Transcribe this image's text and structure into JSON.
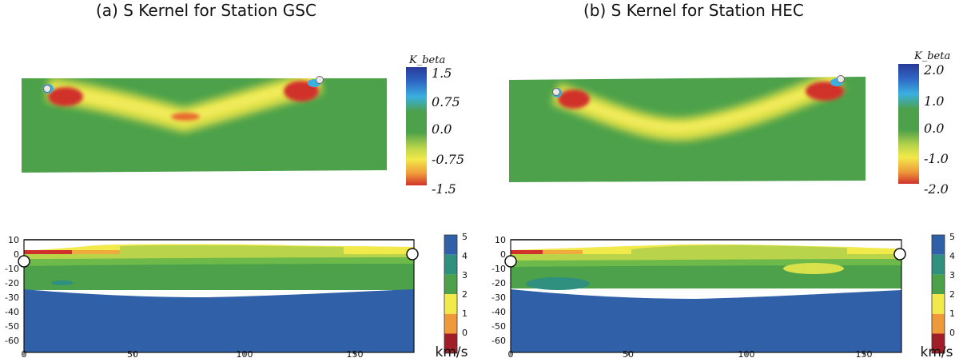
{
  "panels": [
    {
      "title": "(a) S Kernel for Station GSC",
      "kernel_colorbar": {
        "label": "K_beta",
        "ticks": [
          "1.5",
          "0.75",
          "0.0",
          "-0.75",
          "-1.5"
        ]
      }
    },
    {
      "title": "(b) S Kernel for Station HEC",
      "kernel_colorbar": {
        "label": "K_beta",
        "ticks": [
          "2.0",
          "1.0",
          "0.0",
          "-1.0",
          "-2.0"
        ]
      }
    }
  ],
  "velocity_plots": {
    "y_ticks": [
      "10",
      "0",
      "-10",
      "-20",
      "-30",
      "-40",
      "-50",
      "-60"
    ],
    "x_ticks": [
      [
        "0",
        "50",
        "100",
        "150"
      ],
      [
        "0",
        "50",
        "100",
        "150"
      ]
    ],
    "colorbar_ticks": [
      "5",
      "4",
      "3",
      "2",
      "1",
      "0"
    ],
    "colorbar_unit": "km/s"
  },
  "colors": {
    "background_green": "#4ca14a",
    "red": "#d0322b",
    "yellow": "#f2e94a",
    "blue": "#3060a8",
    "light_blue": "#3ab0e0",
    "dark_blue": "#283a98"
  }
}
